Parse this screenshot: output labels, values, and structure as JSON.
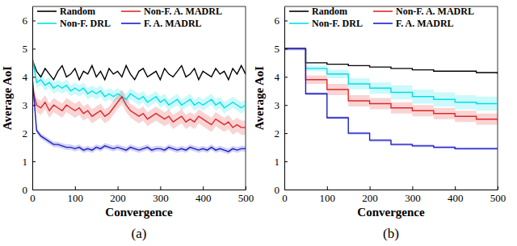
{
  "chart_data": [
    {
      "type": "line",
      "title": "(a)",
      "x_label": "Convergence",
      "y_label": "Average AoI",
      "xlim": [
        0,
        500
      ],
      "ylim": [
        0,
        6.5
      ],
      "xticks": [
        0,
        100,
        200,
        300,
        400,
        500
      ],
      "yticks": [
        0,
        1,
        2,
        3,
        4,
        5,
        6
      ],
      "grid": false,
      "legend": "top",
      "x": [
        0,
        10,
        20,
        30,
        40,
        50,
        60,
        70,
        80,
        90,
        100,
        110,
        120,
        130,
        140,
        150,
        160,
        170,
        180,
        190,
        200,
        210,
        220,
        230,
        240,
        250,
        260,
        270,
        280,
        290,
        300,
        310,
        320,
        330,
        340,
        350,
        360,
        370,
        380,
        390,
        400,
        410,
        420,
        430,
        440,
        450,
        460,
        470,
        480,
        490,
        500
      ],
      "series": [
        {
          "name": "Random",
          "color": "#000000",
          "values": [
            4.6,
            4.2,
            4.0,
            4.3,
            4.1,
            3.9,
            4.2,
            4.4,
            4.0,
            4.1,
            4.3,
            3.9,
            4.2,
            4.1,
            4.4,
            4.0,
            4.2,
            3.9,
            4.3,
            4.1,
            4.2,
            4.0,
            4.4,
            4.1,
            3.9,
            4.2,
            4.3,
            4.0,
            4.1,
            4.2,
            3.9,
            4.3,
            4.1,
            4.0,
            4.2,
            4.4,
            4.0,
            4.1,
            4.3,
            3.9,
            4.2,
            4.1,
            4.0,
            4.3,
            4.1,
            4.2,
            3.9,
            4.3,
            4.1,
            4.4,
            4.1
          ]
        },
        {
          "name": "Non-F. DRL",
          "color": "#00e0e8",
          "values": [
            4.7,
            3.8,
            3.9,
            3.7,
            3.8,
            3.6,
            3.7,
            3.6,
            3.7,
            3.5,
            3.6,
            3.5,
            3.6,
            3.4,
            3.5,
            3.4,
            3.5,
            3.3,
            3.4,
            3.3,
            3.4,
            3.3,
            3.2,
            3.4,
            3.3,
            3.2,
            3.3,
            3.1,
            3.2,
            3.3,
            3.1,
            3.2,
            3.0,
            3.1,
            3.2,
            3.0,
            3.1,
            3.2,
            3.0,
            3.1,
            3.0,
            3.1,
            3.2,
            3.0,
            3.1,
            2.9,
            3.0,
            3.1,
            3.0,
            2.9,
            3.0
          ],
          "error": [
            0.2,
            0.2,
            0.2,
            0.2,
            0.2,
            0.2,
            0.2,
            0.2,
            0.2,
            0.2,
            0.2,
            0.2,
            0.2,
            0.2,
            0.2,
            0.2,
            0.2,
            0.2,
            0.2,
            0.2,
            0.2,
            0.2,
            0.2,
            0.2,
            0.2,
            0.2,
            0.2,
            0.2,
            0.2,
            0.2,
            0.2,
            0.2,
            0.2,
            0.2,
            0.2,
            0.2,
            0.2,
            0.2,
            0.2,
            0.2,
            0.2,
            0.2,
            0.2,
            0.2,
            0.2,
            0.2,
            0.2,
            0.2,
            0.2,
            0.2,
            0.2
          ]
        },
        {
          "name": "Non-F. A. MADRL",
          "color": "#e02828",
          "values": [
            3.6,
            3.0,
            2.9,
            3.1,
            2.8,
            3.0,
            2.9,
            2.8,
            3.0,
            2.9,
            2.8,
            2.9,
            2.7,
            2.8,
            2.6,
            2.7,
            2.8,
            2.6,
            2.7,
            2.9,
            3.1,
            3.3,
            3.0,
            2.8,
            2.7,
            2.6,
            2.7,
            2.5,
            2.6,
            2.7,
            2.6,
            2.5,
            2.6,
            2.4,
            2.5,
            2.6,
            2.4,
            2.5,
            2.4,
            2.6,
            2.5,
            2.4,
            2.3,
            2.5,
            2.4,
            2.3,
            2.4,
            2.2,
            2.3,
            2.2,
            2.2
          ],
          "error": [
            0.25,
            0.25,
            0.25,
            0.25,
            0.25,
            0.25,
            0.25,
            0.25,
            0.25,
            0.25,
            0.25,
            0.25,
            0.25,
            0.25,
            0.25,
            0.25,
            0.25,
            0.25,
            0.25,
            0.25,
            0.25,
            0.25,
            0.25,
            0.25,
            0.25,
            0.25,
            0.25,
            0.25,
            0.25,
            0.25,
            0.25,
            0.25,
            0.25,
            0.25,
            0.25,
            0.25,
            0.25,
            0.25,
            0.25,
            0.25,
            0.25,
            0.25,
            0.25,
            0.25,
            0.25,
            0.25,
            0.25,
            0.25,
            0.25,
            0.25,
            0.25
          ]
        },
        {
          "name": "F. A. MADRL",
          "color": "#1c1ccc",
          "values": [
            4.0,
            2.1,
            1.9,
            1.8,
            1.7,
            1.6,
            1.6,
            1.55,
            1.5,
            1.5,
            1.45,
            1.5,
            1.4,
            1.45,
            1.4,
            1.5,
            1.45,
            1.55,
            1.5,
            1.45,
            1.5,
            1.45,
            1.4,
            1.5,
            1.45,
            1.4,
            1.45,
            1.5,
            1.4,
            1.45,
            1.45,
            1.4,
            1.5,
            1.45,
            1.4,
            1.45,
            1.4,
            1.5,
            1.45,
            1.4,
            1.45,
            1.4,
            1.5,
            1.4,
            1.45,
            1.4,
            1.35,
            1.45,
            1.4,
            1.45,
            1.45
          ],
          "error": [
            0.1,
            0.1,
            0.1,
            0.1,
            0.1,
            0.1,
            0.1,
            0.1,
            0.1,
            0.1,
            0.1,
            0.1,
            0.1,
            0.1,
            0.1,
            0.1,
            0.1,
            0.1,
            0.1,
            0.1,
            0.1,
            0.1,
            0.1,
            0.1,
            0.1,
            0.1,
            0.1,
            0.1,
            0.1,
            0.1,
            0.1,
            0.1,
            0.1,
            0.1,
            0.1,
            0.1,
            0.1,
            0.1,
            0.1,
            0.1,
            0.1,
            0.1,
            0.1,
            0.1,
            0.1,
            0.1,
            0.1,
            0.1,
            0.1,
            0.1,
            0.1
          ]
        }
      ]
    },
    {
      "type": "step",
      "title": "(b)",
      "x_label": "Convergence",
      "y_label": "Average AoI",
      "xlim": [
        0,
        500
      ],
      "ylim": [
        0,
        6.5
      ],
      "xticks": [
        0,
        100,
        200,
        300,
        400,
        500
      ],
      "yticks": [
        0,
        1,
        2,
        3,
        4,
        5,
        6
      ],
      "grid": false,
      "legend": "top",
      "x": [
        0,
        50,
        100,
        150,
        200,
        250,
        300,
        350,
        400,
        450,
        500
      ],
      "series": [
        {
          "name": "Random",
          "color": "#000000",
          "values": [
            5.0,
            4.5,
            4.45,
            4.4,
            4.35,
            4.3,
            4.25,
            4.2,
            4.2,
            4.15,
            4.1
          ]
        },
        {
          "name": "Non-F. DRL",
          "color": "#00e0e8",
          "values": [
            5.0,
            4.3,
            4.1,
            3.75,
            3.6,
            3.45,
            3.3,
            3.2,
            3.1,
            3.05,
            3.0
          ],
          "error": [
            0.05,
            0.1,
            0.15,
            0.2,
            0.2,
            0.25,
            0.25,
            0.25,
            0.25,
            0.25,
            0.25
          ]
        },
        {
          "name": "Non-F. A. MADRL",
          "color": "#e02828",
          "values": [
            5.0,
            3.9,
            3.55,
            3.15,
            3.05,
            2.9,
            2.8,
            2.7,
            2.6,
            2.5,
            2.45
          ],
          "error": [
            0.05,
            0.15,
            0.2,
            0.2,
            0.2,
            0.2,
            0.2,
            0.2,
            0.2,
            0.2,
            0.2
          ]
        },
        {
          "name": "F. A. MADRL",
          "color": "#1c1ccc",
          "values": [
            5.0,
            3.4,
            2.55,
            2.0,
            1.75,
            1.6,
            1.55,
            1.5,
            1.45,
            1.45,
            1.45
          ],
          "error": [
            0.05,
            0.05,
            0.05,
            0.05,
            0.05,
            0.05,
            0.05,
            0.05,
            0.05,
            0.05,
            0.05
          ]
        }
      ]
    }
  ]
}
